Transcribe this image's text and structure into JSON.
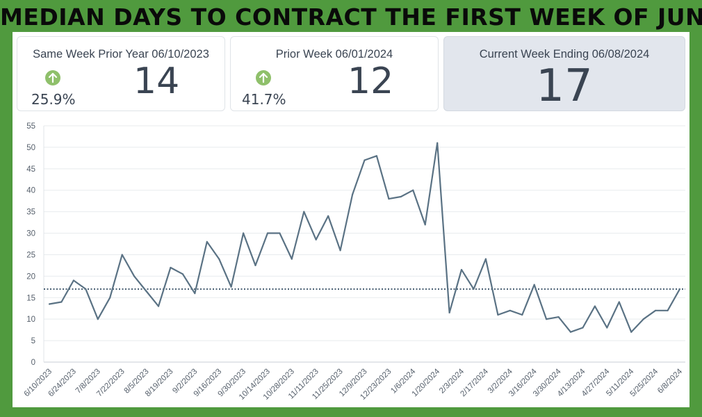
{
  "header": {
    "title": "MEDIAN DAYS TO CONTRACT THE FIRST WEEK OF JUNE"
  },
  "cards": [
    {
      "label": "Same Week Prior Year 06/10/2023",
      "value": "14",
      "change": "25.9%",
      "icon": "arrow-up-icon",
      "icon_color": "#8fc06b"
    },
    {
      "label": "Prior Week 06/01/2024",
      "value": "12",
      "change": "41.7%",
      "icon": "arrow-up-icon",
      "icon_color": "#8fc06b"
    },
    {
      "label": "Current Week Ending 06/08/2024",
      "value": "17"
    }
  ],
  "chart_data": {
    "type": "line",
    "x": [
      "6/10/2023",
      "6/17/2023",
      "6/24/2023",
      "7/1/2023",
      "7/8/2023",
      "7/15/2023",
      "7/22/2023",
      "7/29/2023",
      "8/5/2023",
      "8/12/2023",
      "8/19/2023",
      "8/26/2023",
      "9/2/2023",
      "9/9/2023",
      "9/16/2023",
      "9/23/2023",
      "9/30/2023",
      "10/7/2023",
      "10/14/2023",
      "10/21/2023",
      "10/28/2023",
      "11/4/2023",
      "11/11/2023",
      "11/18/2023",
      "11/25/2023",
      "12/2/2023",
      "12/9/2023",
      "12/16/2023",
      "12/23/2023",
      "12/30/2023",
      "1/6/2024",
      "1/13/2024",
      "1/20/2024",
      "1/27/2024",
      "2/3/2024",
      "2/10/2024",
      "2/17/2024",
      "2/24/2024",
      "3/2/2024",
      "3/9/2024",
      "3/16/2024",
      "3/23/2024",
      "3/30/2024",
      "4/6/2024",
      "4/13/2024",
      "4/20/2024",
      "4/27/2024",
      "5/4/2024",
      "5/11/2024",
      "5/18/2024",
      "5/25/2024",
      "6/1/2024",
      "6/8/2024"
    ],
    "tick_labels": [
      "6/10/2023",
      "6/24/2023",
      "7/8/2023",
      "7/22/2023",
      "8/5/2023",
      "8/19/2023",
      "9/2/2023",
      "9/16/2023",
      "9/30/2023",
      "10/14/2023",
      "10/28/2023",
      "11/11/2023",
      "11/25/2023",
      "12/9/2023",
      "12/23/2023",
      "1/6/2024",
      "1/20/2024",
      "2/3/2024",
      "2/17/2024",
      "3/2/2024",
      "3/16/2024",
      "3/30/2024",
      "4/13/2024",
      "4/27/2024",
      "5/11/2024",
      "5/25/2024",
      "6/8/2024"
    ],
    "values": [
      13.5,
      14,
      19,
      17,
      10,
      15,
      25,
      20,
      16.5,
      13,
      22,
      20.5,
      16,
      28,
      24,
      17.5,
      30,
      22.5,
      30,
      30,
      24,
      35,
      28.5,
      34,
      26,
      39,
      47,
      48,
      38,
      38.5,
      40,
      32,
      51,
      11.5,
      21.5,
      17,
      24,
      11,
      12,
      11,
      18,
      10,
      10.5,
      7,
      8,
      13,
      8,
      14,
      7,
      10,
      12,
      12,
      17
    ],
    "reference_line": 17,
    "yticks": [
      0,
      5,
      10,
      15,
      20,
      25,
      30,
      35,
      40,
      45,
      50,
      55
    ],
    "ylim": [
      0,
      55
    ],
    "line_color": "#5a7284",
    "reference_color": "#1f3a52",
    "grid": true
  }
}
